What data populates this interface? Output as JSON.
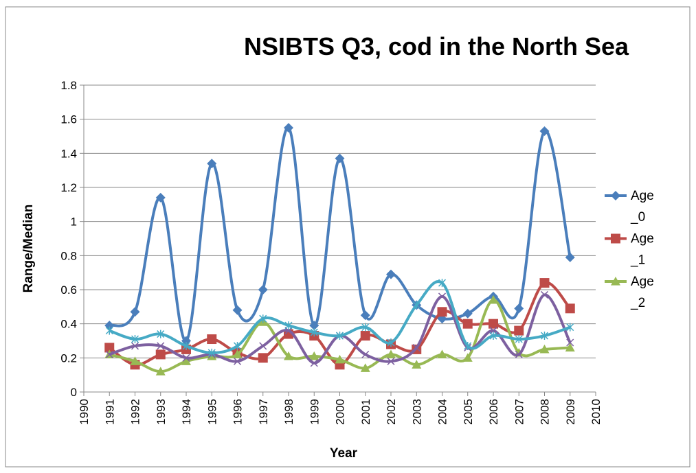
{
  "chart_data": {
    "type": "line",
    "title": "NSIBTS Q3, cod in the North Sea",
    "x_label": "Year",
    "y_label": "Range/Median",
    "x": [
      1991,
      1992,
      1993,
      1994,
      1995,
      1996,
      1997,
      1998,
      1999,
      2000,
      2001,
      2002,
      2003,
      2004,
      2005,
      2006,
      2007,
      2008,
      2009
    ],
    "xlim": [
      1990,
      2010
    ],
    "xticks": [
      1990,
      1991,
      1992,
      1993,
      1994,
      1995,
      1996,
      1997,
      1998,
      1999,
      2000,
      2001,
      2002,
      2003,
      2004,
      2005,
      2006,
      2007,
      2008,
      2009,
      2010
    ],
    "ylim": [
      0,
      1.8
    ],
    "yticks": [
      0,
      0.2,
      0.4,
      0.6,
      0.8,
      1,
      1.2,
      1.4,
      1.6,
      1.8
    ],
    "grid": true,
    "smooth": true,
    "legend": "right",
    "series": [
      {
        "name": "Age_0",
        "color": "#4a7ebb",
        "marker": "diamond",
        "values": [
          0.39,
          0.47,
          1.14,
          0.3,
          1.34,
          0.48,
          0.6,
          1.55,
          0.39,
          1.37,
          0.45,
          0.69,
          0.51,
          0.43,
          0.46,
          0.56,
          0.49,
          1.53,
          0.79
        ]
      },
      {
        "name": "Age_1",
        "color": "#be4b48",
        "marker": "square",
        "values": [
          0.26,
          0.16,
          0.22,
          0.25,
          0.31,
          0.23,
          0.2,
          0.34,
          0.33,
          0.16,
          0.33,
          0.28,
          0.25,
          0.47,
          0.4,
          0.4,
          0.36,
          0.64,
          0.49
        ]
      },
      {
        "name": "Age_2",
        "color": "#98b954",
        "marker": "triangle",
        "values": [
          0.22,
          0.18,
          0.12,
          0.18,
          0.21,
          0.22,
          0.41,
          0.21,
          0.21,
          0.19,
          0.14,
          0.22,
          0.16,
          0.22,
          0.2,
          0.54,
          0.23,
          0.25,
          0.26
        ]
      },
      {
        "color": "#7d60a0",
        "marker": "x",
        "values": [
          0.22,
          0.27,
          0.27,
          0.2,
          0.22,
          0.18,
          0.27,
          0.36,
          0.17,
          0.33,
          0.22,
          0.18,
          0.26,
          0.56,
          0.26,
          0.36,
          0.22,
          0.57,
          0.29
        ]
      },
      {
        "color": "#46aac5",
        "marker": "star",
        "values": [
          0.36,
          0.31,
          0.34,
          0.27,
          0.23,
          0.27,
          0.43,
          0.39,
          0.35,
          0.33,
          0.38,
          0.29,
          0.51,
          0.64,
          0.27,
          0.33,
          0.31,
          0.33,
          0.38
        ]
      }
    ]
  }
}
